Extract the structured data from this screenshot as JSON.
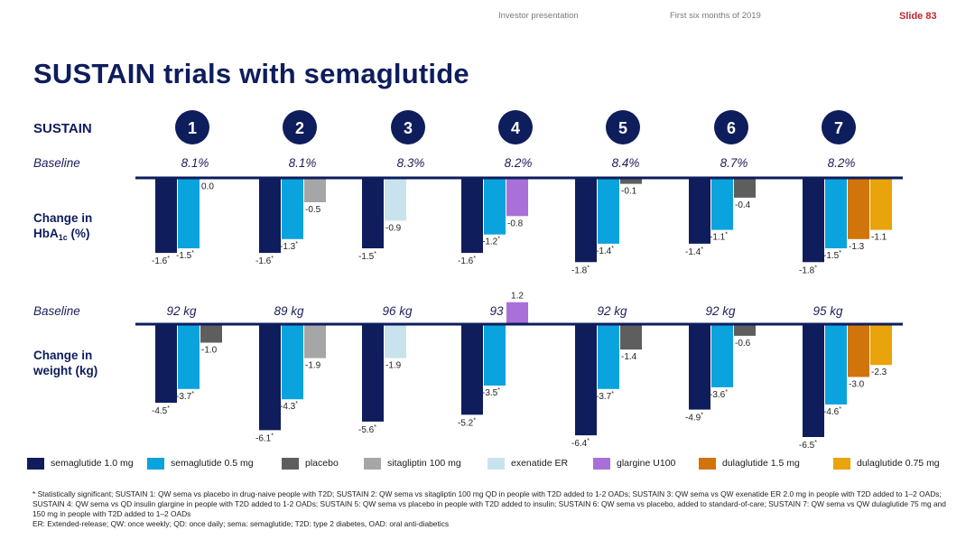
{
  "header": {
    "presentation": "Investor presentation",
    "period": "First six months of 2019",
    "slide": "Slide 83"
  },
  "title": "SUSTAIN trials with semaglutide",
  "chart_data": {
    "type": "bar",
    "row_label": "SUSTAIN",
    "trials": [
      "1",
      "2",
      "3",
      "4",
      "5",
      "6",
      "7"
    ],
    "colors": {
      "sema10": "#0f1d5c",
      "sema05": "#0aa3dd",
      "placebo": "#5e5e5e",
      "sitagliptin": "#a6a6a6",
      "exenatide": "#c9e3ee",
      "glargine": "#a870d8",
      "dula15": "#d1740c",
      "dula075": "#e8a40a"
    },
    "legend": [
      {
        "key": "sema10",
        "label": "semaglutide 1.0 mg"
      },
      {
        "key": "sema05",
        "label": "semaglutide 0.5 mg"
      },
      {
        "key": "placebo",
        "label": "placebo"
      },
      {
        "key": "sitagliptin",
        "label": "sitagliptin 100 mg"
      },
      {
        "key": "exenatide",
        "label": "exenatide ER"
      },
      {
        "key": "glargine",
        "label": "glargine U100"
      },
      {
        "key": "dula15",
        "label": "dulaglutide 1.5 mg"
      },
      {
        "key": "dula075",
        "label": "dulaglutide 0.75 mg"
      }
    ],
    "hba1c": {
      "baseline_label": "Baseline",
      "change_label_line1": "Change in",
      "change_label_line2": "HbA",
      "change_label_sub": "1c",
      "change_label_unit": " (%)",
      "unit": "%",
      "baselines": [
        "8.1%",
        "8.1%",
        "8.3%",
        "8.2%",
        "8.4%",
        "8.7%",
        "8.2%"
      ],
      "groups": [
        [
          {
            "series": "sema10",
            "value": -1.6,
            "label": "-1.6",
            "sig": true
          },
          {
            "series": "sema05",
            "value": -1.5,
            "label": "-1.5",
            "sig": true
          },
          {
            "series": "placebo",
            "value": 0.0,
            "label": "0.0",
            "sig": false
          }
        ],
        [
          {
            "series": "sema10",
            "value": -1.6,
            "label": "-1.6",
            "sig": true
          },
          {
            "series": "sema05",
            "value": -1.3,
            "label": "-1.3",
            "sig": true
          },
          {
            "series": "sitagliptin",
            "value": -0.5,
            "label": "-0.5",
            "sig": false
          }
        ],
        [
          {
            "series": "sema10",
            "value": -1.5,
            "label": "-1.5",
            "sig": true
          },
          {
            "series": "exenatide",
            "value": -0.9,
            "label": "-0.9",
            "sig": false
          }
        ],
        [
          {
            "series": "sema10",
            "value": -1.6,
            "label": "-1.6",
            "sig": true
          },
          {
            "series": "sema05",
            "value": -1.2,
            "label": "-1.2",
            "sig": true
          },
          {
            "series": "glargine",
            "value": -0.8,
            "label": "-0.8",
            "sig": false
          }
        ],
        [
          {
            "series": "sema10",
            "value": -1.8,
            "label": "-1.8",
            "sig": true
          },
          {
            "series": "sema05",
            "value": -1.4,
            "label": "-1.4",
            "sig": true
          },
          {
            "series": "placebo",
            "value": -0.1,
            "label": "-0.1",
            "sig": false
          }
        ],
        [
          {
            "series": "sema10",
            "value": -1.4,
            "label": "-1.4",
            "sig": true
          },
          {
            "series": "sema05",
            "value": -1.1,
            "label": "-1.1",
            "sig": true
          },
          {
            "series": "placebo",
            "value": -0.4,
            "label": "-0.4",
            "sig": false
          }
        ],
        [
          {
            "series": "sema10",
            "value": -1.8,
            "label": "-1.8",
            "sig": true
          },
          {
            "series": "sema05",
            "value": -1.5,
            "label": "-1.5",
            "sig": true
          },
          {
            "series": "dula15",
            "value": -1.3,
            "label": "-1.3",
            "sig": false
          },
          {
            "series": "dula075",
            "value": -1.1,
            "label": "-1.1",
            "sig": false
          }
        ]
      ]
    },
    "weight": {
      "baseline_label": "Baseline",
      "change_label_line1": "Change in",
      "change_label_line2": "weight (kg)",
      "unit": "kg",
      "baselines": [
        "92 kg",
        "89 kg",
        "96 kg",
        "93 kg",
        "92 kg",
        "92 kg",
        "95 kg"
      ],
      "groups": [
        [
          {
            "series": "sema10",
            "value": -4.5,
            "label": "-4.5",
            "sig": true
          },
          {
            "series": "sema05",
            "value": -3.7,
            "label": "-3.7",
            "sig": true
          },
          {
            "series": "placebo",
            "value": -1.0,
            "label": "-1.0",
            "sig": false
          }
        ],
        [
          {
            "series": "sema10",
            "value": -6.1,
            "label": "-6.1",
            "sig": true
          },
          {
            "series": "sema05",
            "value": -4.3,
            "label": "-4.3",
            "sig": true
          },
          {
            "series": "sitagliptin",
            "value": -1.9,
            "label": "-1.9",
            "sig": false
          }
        ],
        [
          {
            "series": "sema10",
            "value": -5.6,
            "label": "-5.6",
            "sig": true
          },
          {
            "series": "exenatide",
            "value": -1.9,
            "label": "-1.9",
            "sig": false
          }
        ],
        [
          {
            "series": "sema10",
            "value": -5.2,
            "label": "-5.2",
            "sig": true
          },
          {
            "series": "sema05",
            "value": -3.5,
            "label": "-3.5",
            "sig": true
          },
          {
            "series": "glargine",
            "value": 1.2,
            "label": "1.2",
            "sig": false
          }
        ],
        [
          {
            "series": "sema10",
            "value": -6.4,
            "label": "-6.4",
            "sig": true
          },
          {
            "series": "sema05",
            "value": -3.7,
            "label": "-3.7",
            "sig": true
          },
          {
            "series": "placebo",
            "value": -1.4,
            "label": "-1.4",
            "sig": false
          }
        ],
        [
          {
            "series": "sema10",
            "value": -4.9,
            "label": "-4.9",
            "sig": true
          },
          {
            "series": "sema05",
            "value": -3.6,
            "label": "-3.6",
            "sig": true
          },
          {
            "series": "placebo",
            "value": -0.6,
            "label": "-0.6",
            "sig": false
          }
        ],
        [
          {
            "series": "sema10",
            "value": -6.5,
            "label": "-6.5",
            "sig": true
          },
          {
            "series": "sema05",
            "value": -4.6,
            "label": "-4.6",
            "sig": true
          },
          {
            "series": "dula15",
            "value": -3.0,
            "label": "-3.0",
            "sig": false
          },
          {
            "series": "dula075",
            "value": -2.3,
            "label": "-2.3",
            "sig": false
          }
        ]
      ]
    }
  },
  "footnotes": [
    "* Statistically significant; SUSTAIN 1: QW sema vs placebo in drug-naive people with T2D; SUSTAIN 2: QW sema vs sitagliptin 100 mg QD in people with T2D added to 1-2 OADs; SUSTAIN 3: QW sema vs QW exenatide ER 2.0 mg in people with T2D added to 1–2 OADs; SUSTAIN 4: QW sema vs QD insulin glargine in people with T2D added to 1-2 OADs; SUSTAIN 5: QW sema vs placebo in people with T2D added to insulin; SUSTAIN 6: QW sema vs placebo, added to standard-of-care; SUSTAIN 7: QW sema vs QW dulaglutide 75 mg and 150 mg in people with T2D added to 1–2 OADs",
    "ER: Extended-release; QW: once weekly; QD: once daily; sema: semaglutide; T2D: type 2 diabetes, OAD: oral anti-diabetics"
  ]
}
